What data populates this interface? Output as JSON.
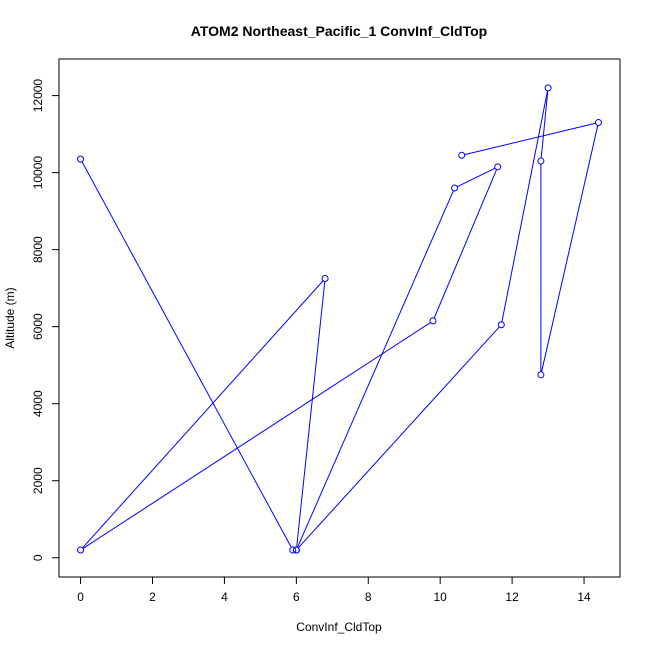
{
  "chart_data": {
    "type": "line",
    "title": "ATOM2 Northeast_Pacific_1 ConvInf_CldTop",
    "xlabel": "ConvInf_CldTop",
    "ylabel": "Altitude (m)",
    "xlim": [
      -0.6,
      15.0
    ],
    "ylim": [
      -500,
      12950
    ],
    "x_ticks": [
      0,
      2,
      4,
      6,
      8,
      10,
      12,
      14
    ],
    "x_tick_labels": [
      "0",
      "2",
      "4",
      "6",
      "8",
      "10",
      "12",
      "14"
    ],
    "y_ticks": [
      0,
      2000,
      4000,
      6000,
      8000,
      10000,
      12000
    ],
    "y_tick_labels": [
      "0",
      "2000",
      "4000",
      "6000",
      "8000",
      "10000",
      "12000"
    ],
    "grid": false,
    "legend": "none",
    "series": [
      {
        "color": "#0000ff",
        "marker": "open-circle",
        "points": [
          {
            "x": 10.6,
            "y": 10450
          },
          {
            "x": 14.4,
            "y": 11300
          },
          {
            "x": 12.8,
            "y": 4750
          },
          {
            "x": 12.8,
            "y": 10300
          },
          {
            "x": 13.0,
            "y": 12200
          },
          {
            "x": 11.7,
            "y": 6050
          },
          {
            "x": 6.0,
            "y": 200
          },
          {
            "x": 10.4,
            "y": 9600
          },
          {
            "x": 11.6,
            "y": 10150
          },
          {
            "x": 9.8,
            "y": 6150
          },
          {
            "x": 0.0,
            "y": 200
          },
          {
            "x": 6.8,
            "y": 7250
          },
          {
            "x": 6.0,
            "y": 200
          },
          {
            "x": 5.9,
            "y": 200
          },
          {
            "x": 0.0,
            "y": 10350
          }
        ]
      }
    ]
  }
}
